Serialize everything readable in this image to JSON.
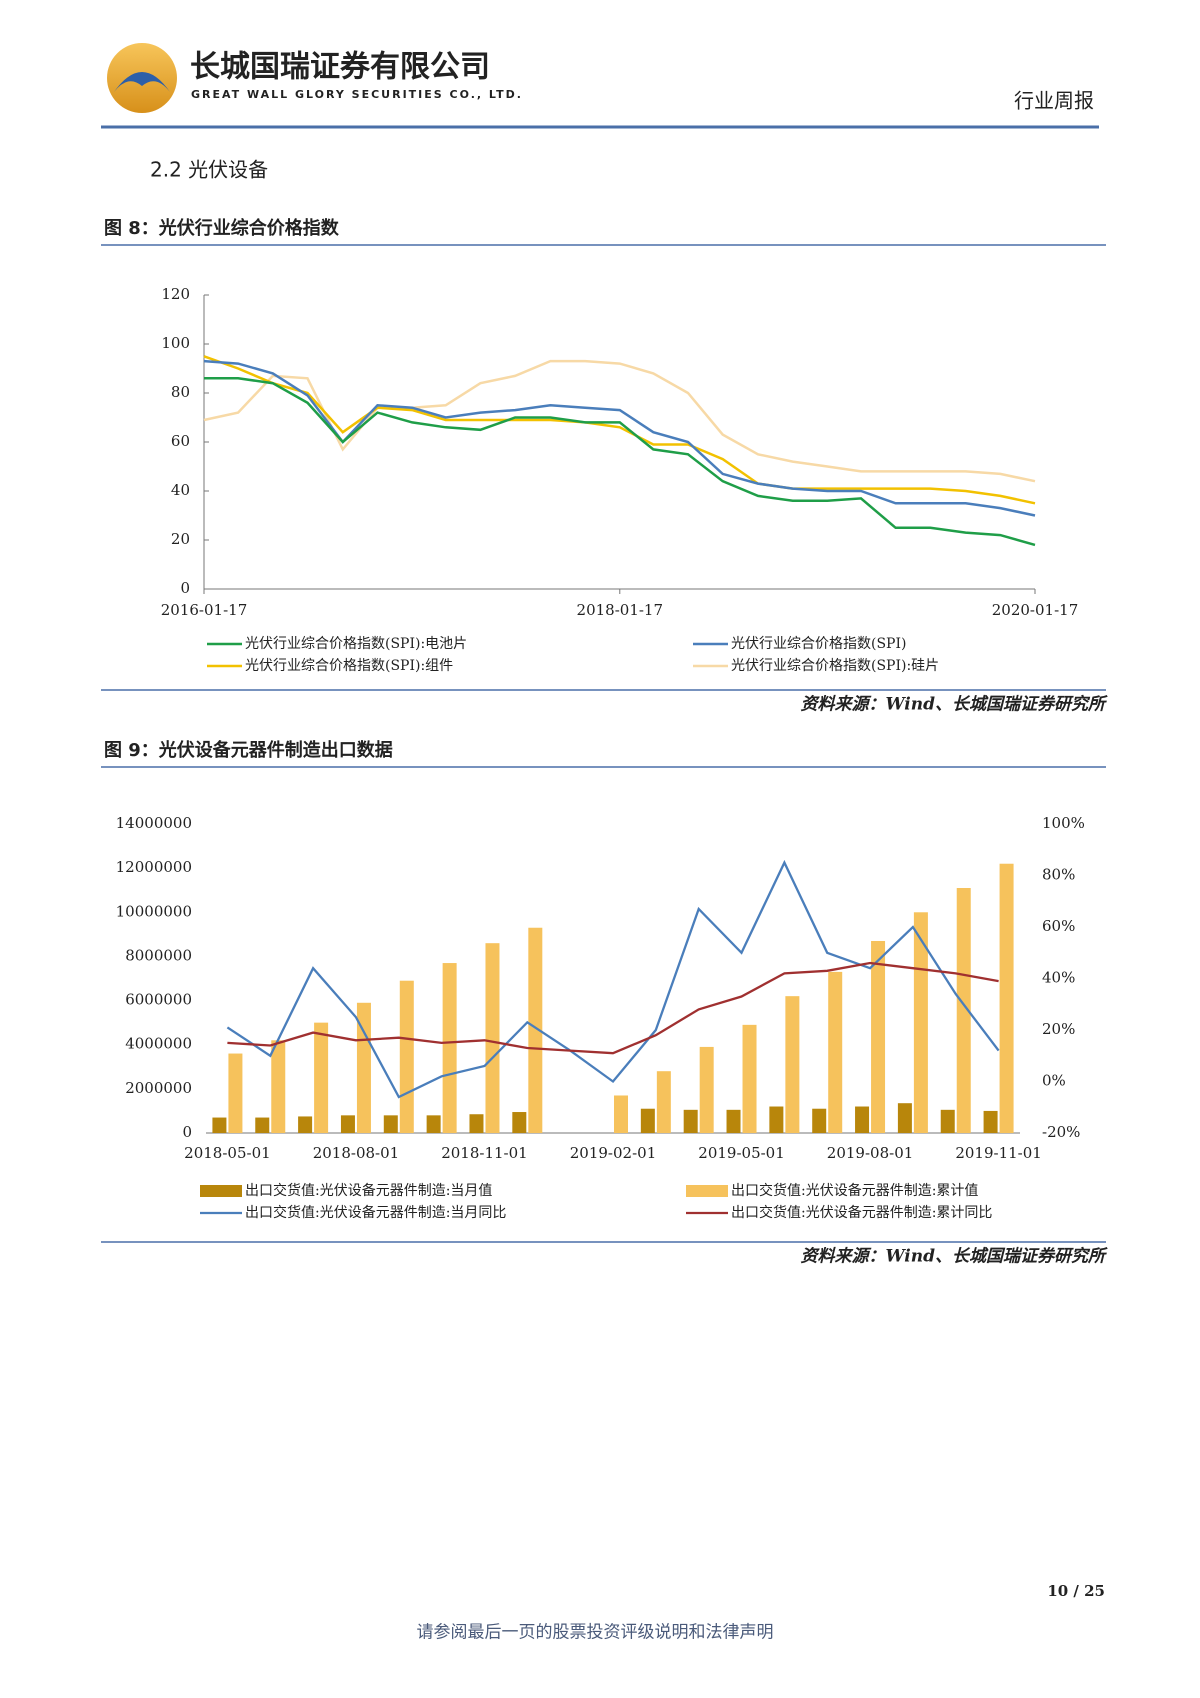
{
  "header": {
    "company": "长城国瑞证券有限公司",
    "company_en": "GREAT WALL GLORY SECURITIES CO., LTD.",
    "report_type": "行业周报"
  },
  "section_title": "2.2  光伏设备",
  "chart_data": [
    {
      "type": "line",
      "title": "图 8：光伏行业综合价格指数",
      "source": "资料来源：Wind、长城国瑞证券研究所",
      "x": [
        "2016-01-17",
        "2016-03-17",
        "2016-05-17",
        "2016-07-17",
        "2016-09-17",
        "2016-11-17",
        "2017-01-17",
        "2017-03-17",
        "2017-05-17",
        "2017-07-17",
        "2017-09-17",
        "2017-11-17",
        "2018-01-17",
        "2018-03-17",
        "2018-05-17",
        "2018-07-17",
        "2018-09-17",
        "2018-11-17",
        "2019-01-17",
        "2019-03-17",
        "2019-05-17",
        "2019-07-17",
        "2019-09-17",
        "2019-11-17",
        "2020-01-17"
      ],
      "xlim": [
        "2016-01-17",
        "2020-01-17"
      ],
      "xticks": [
        "2016-01-17",
        "2018-01-17",
        "2020-01-17"
      ],
      "ylim": [
        0,
        120
      ],
      "yticks": [
        0,
        20,
        40,
        60,
        80,
        100,
        120
      ],
      "grid": false,
      "series": [
        {
          "name": "光伏行业综合价格指数(SPI):电池片",
          "color": "#1f9e48",
          "values": [
            86,
            86,
            84,
            76,
            60,
            72,
            68,
            66,
            65,
            70,
            70,
            68,
            68,
            57,
            55,
            44,
            38,
            36,
            36,
            37,
            25,
            25,
            23,
            22,
            18
          ]
        },
        {
          "name": "光伏行业综合价格指数(SPI)",
          "color": "#4a7ebb",
          "values": [
            93,
            92,
            88,
            79,
            60,
            75,
            74,
            70,
            72,
            73,
            75,
            74,
            73,
            64,
            60,
            47,
            43,
            41,
            40,
            40,
            35,
            35,
            35,
            33,
            30
          ]
        },
        {
          "name": "光伏行业综合价格指数(SPI):组件",
          "color": "#f2c100",
          "values": [
            95,
            90,
            84,
            80,
            64,
            74,
            73,
            69,
            69,
            69,
            69,
            68,
            66,
            59,
            59,
            53,
            43,
            41,
            41,
            41,
            41,
            41,
            40,
            38,
            35
          ]
        },
        {
          "name": "光伏行业综合价格指数(SPI):硅片",
          "color": "#f7d9a6",
          "values": [
            69,
            72,
            87,
            86,
            57,
            74,
            74,
            75,
            84,
            87,
            93,
            93,
            92,
            88,
            80,
            63,
            55,
            52,
            50,
            48,
            48,
            48,
            48,
            47,
            44
          ]
        }
      ]
    },
    {
      "type": "combo",
      "title": "图 9：光伏设备元器件制造出口数据",
      "source": "资料来源：Wind、长城国瑞证券研究所",
      "categories": [
        "2018-05-01",
        null,
        null,
        "2018-08-01",
        null,
        null,
        "2018-11-01",
        null,
        null,
        "2019-02-01",
        null,
        null,
        "2019-05-01",
        null,
        null,
        "2019-08-01",
        null,
        null,
        "2019-11-01"
      ],
      "ylim": [
        0,
        14000000
      ],
      "yticks": [
        0,
        2000000,
        4000000,
        6000000,
        8000000,
        10000000,
        12000000,
        14000000
      ],
      "y2lim": [
        -20,
        100
      ],
      "y2ticks": [
        {
          "value": -20,
          "label": "-20%"
        },
        {
          "value": 0,
          "label": "0%"
        },
        {
          "value": 20,
          "label": "20%"
        },
        {
          "value": 40,
          "label": "40%"
        },
        {
          "value": 60,
          "label": "60%"
        },
        {
          "value": 80,
          "label": "80%"
        },
        {
          "value": 100,
          "label": "100%"
        }
      ],
      "series": [
        {
          "name": "出口交货值:光伏设备元器件制造:当月值",
          "type": "bar",
          "color": "#b8860b",
          "values": [
            700000,
            700000,
            750000,
            800000,
            800000,
            800000,
            850000,
            950000,
            null,
            null,
            1100000,
            1050000,
            1050000,
            1200000,
            1100000,
            1200000,
            1350000,
            1050000,
            1000000
          ]
        },
        {
          "name": "出口交货值:光伏设备元器件制造:累计值",
          "type": "bar",
          "color": "#f6c25c",
          "values": [
            3600000,
            4200000,
            5000000,
            5900000,
            6900000,
            7700000,
            8600000,
            9300000,
            null,
            1700000,
            2800000,
            3900000,
            4900000,
            6200000,
            7300000,
            8700000,
            10000000,
            11100000,
            12200000
          ]
        },
        {
          "name": "出口交货值:光伏设备元器件制造:当月同比",
          "type": "line",
          "axis": "y2",
          "color": "#4a7ebb",
          "values": [
            21,
            10,
            44,
            25,
            -6,
            2,
            6,
            23,
            12,
            0,
            20,
            67,
            50,
            85,
            50,
            44,
            60,
            34,
            12
          ]
        },
        {
          "name": "出口交货值:光伏设备元器件制造:累计同比",
          "type": "line",
          "axis": "y2",
          "color": "#a03030",
          "values": [
            15,
            14,
            19,
            16,
            17,
            15,
            16,
            13,
            12,
            11,
            18,
            28,
            33,
            42,
            43,
            46,
            44,
            42,
            39
          ]
        }
      ]
    }
  ],
  "page_number": "10 / 25",
  "footer": "请参阅最后一页的股票投资评级说明和法律声明"
}
